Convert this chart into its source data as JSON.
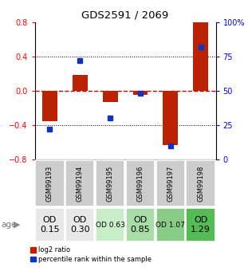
{
  "title": "GDS2591 / 2069",
  "samples": [
    "GSM99193",
    "GSM99194",
    "GSM99195",
    "GSM99196",
    "GSM99197",
    "GSM99198"
  ],
  "log2_ratio": [
    -0.35,
    0.18,
    -0.13,
    -0.05,
    -0.63,
    0.82
  ],
  "percentile_rank": [
    22,
    72,
    30,
    48,
    10,
    82
  ],
  "age_labels": [
    "OD\n0.15",
    "OD\n0.30",
    "OD 0.63",
    "OD\n0.85",
    "OD 1.07",
    "OD\n1.29"
  ],
  "age_bg_colors": [
    "#e8e8e8",
    "#e8e8e8",
    "#c8eec8",
    "#a8dca8",
    "#88cc88",
    "#55bb55"
  ],
  "age_fontsize": [
    8,
    8,
    6.5,
    8,
    6.5,
    8
  ],
  "ylim_left": [
    -0.8,
    0.8
  ],
  "ylim_right": [
    0,
    100
  ],
  "yticks_left": [
    -0.8,
    -0.4,
    0.0,
    0.4,
    0.8
  ],
  "yticks_right": [
    0,
    25,
    50,
    75,
    100
  ],
  "bar_color_red": "#bb2200",
  "bar_color_blue": "#1133bb",
  "zero_line_color": "#cc0000",
  "sample_bg_color": "#cccccc",
  "legend_labels": [
    "log2 ratio",
    "percentile rank within the sample"
  ]
}
